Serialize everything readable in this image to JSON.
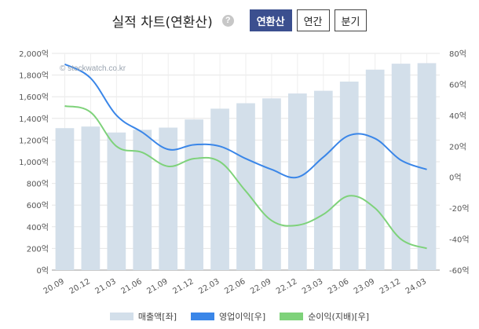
{
  "header": {
    "title": "실적 차트(연환산)",
    "help_glyph": "?",
    "tabs": [
      {
        "label": "연환산",
        "active": true
      },
      {
        "label": "연간",
        "active": false
      },
      {
        "label": "분기",
        "active": false
      }
    ]
  },
  "watermark": "© stockwatch.co.kr",
  "colors": {
    "revenue": "#d3dfea",
    "operating": "#3a86e8",
    "net": "#7ed27a"
  },
  "chart_data": {
    "type": "bar",
    "categories": [
      "20.09",
      "20.12",
      "21.03",
      "21.06",
      "21.09",
      "21.12",
      "22.03",
      "22.06",
      "22.09",
      "22.12",
      "23.03",
      "23.06",
      "23.09",
      "23.12",
      "24.03"
    ],
    "y_left": {
      "range": [
        0,
        2000
      ],
      "ticks": [
        0,
        200,
        400,
        600,
        800,
        1000,
        1200,
        1400,
        1600,
        1800,
        2000
      ],
      "tick_labels": [
        "0억",
        "200억",
        "400억",
        "600억",
        "800억",
        "1,000억",
        "1,200억",
        "1,400억",
        "1,600억",
        "1,800억",
        "2,000억"
      ]
    },
    "y_right": {
      "range": [
        -60,
        80
      ],
      "ticks": [
        -60,
        -40,
        -20,
        0,
        20,
        40,
        60,
        80
      ],
      "tick_labels": [
        "-60억",
        "-40억",
        "-20억",
        "0억",
        "20억",
        "40억",
        "60억",
        "80억"
      ]
    },
    "grid": true,
    "legend_position": "bottom",
    "series": [
      {
        "name": "매출액[좌]",
        "type": "bar",
        "axis": "left",
        "values": [
          1310,
          1325,
          1270,
          1295,
          1315,
          1390,
          1490,
          1540,
          1585,
          1630,
          1655,
          1740,
          1850,
          1905,
          1910
        ]
      },
      {
        "name": "영업이익[우]",
        "type": "line",
        "axis": "right",
        "values": [
          73,
          64,
          40,
          29,
          18,
          21,
          20,
          12,
          5,
          0,
          13,
          27,
          25,
          11,
          5
        ]
      },
      {
        "name": "순이익(지배)[우]",
        "type": "line",
        "axis": "right",
        "values": [
          46,
          42,
          20,
          16,
          7,
          12,
          10,
          -9,
          -28,
          -31,
          -24,
          -12,
          -20,
          -40,
          -46
        ]
      }
    ]
  }
}
